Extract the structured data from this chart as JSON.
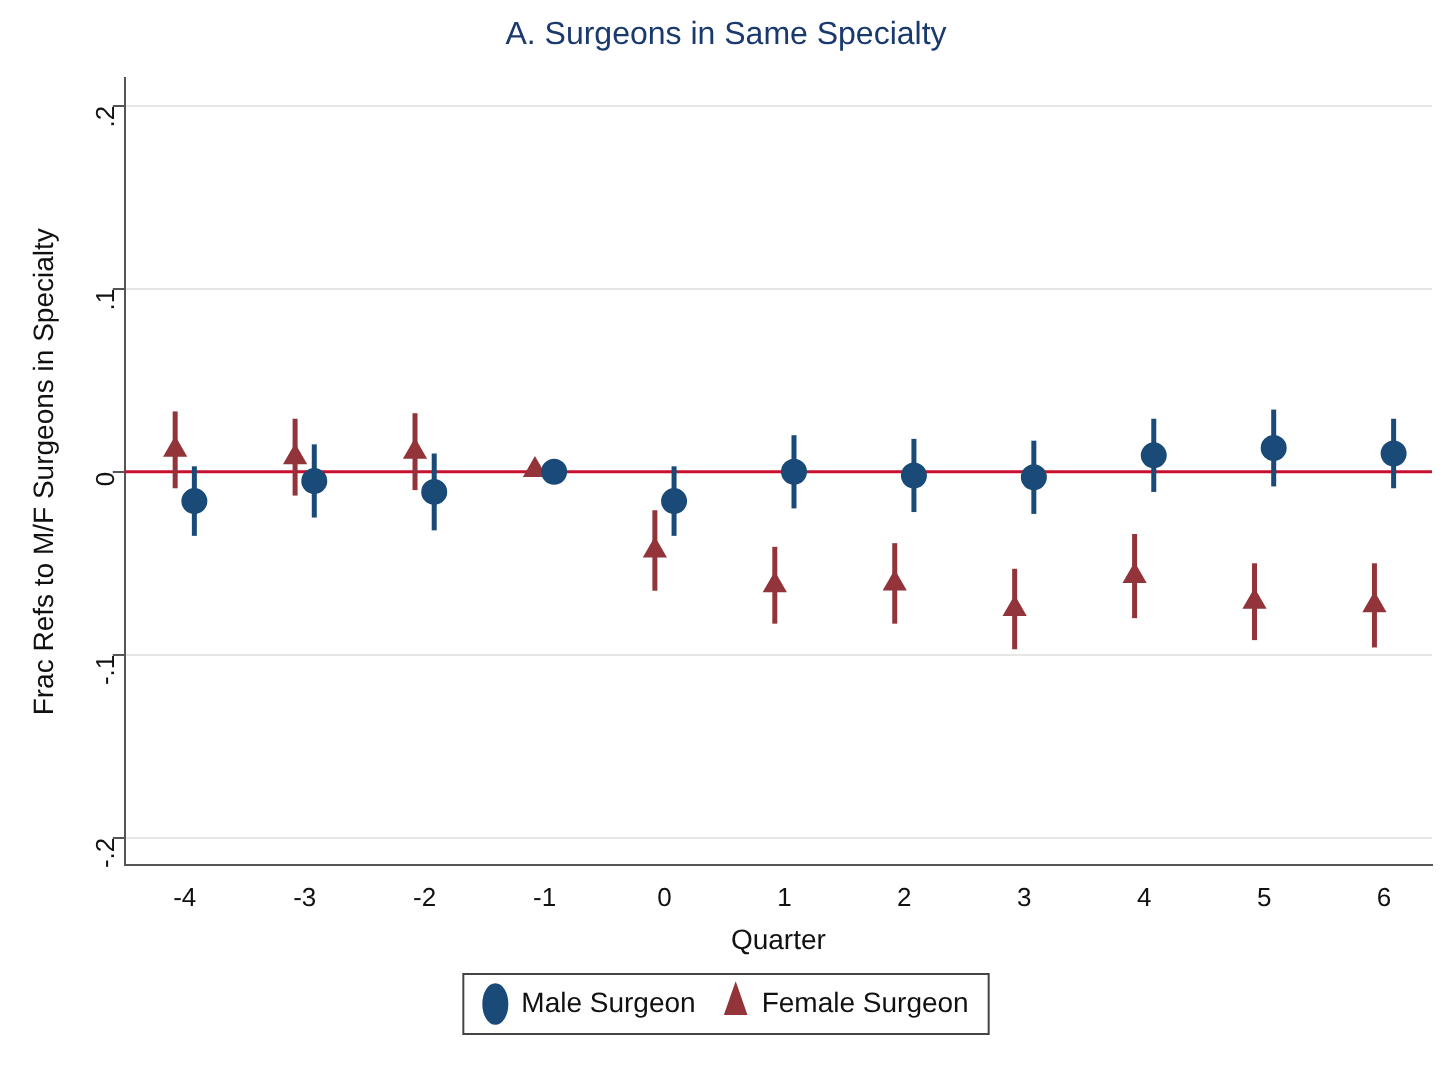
{
  "chart_data": {
    "type": "scatter",
    "title": "A. Surgeons in Same Specialty",
    "xlabel": "Quarter",
    "ylabel": "Frac Refs to M/F Surgeons in Specialty",
    "xlim": [
      -4.5,
      6.4
    ],
    "xticks": [
      -4,
      -3,
      -2,
      -1,
      0,
      1,
      2,
      3,
      4,
      5,
      6
    ],
    "ylim": [
      -0.215,
      0.215
    ],
    "yticks": [
      {
        "value": -0.2,
        "label": "-.2"
      },
      {
        "value": -0.1,
        "label": "-.1"
      },
      0,
      {
        "value": 0.1,
        "label": ".1"
      },
      {
        "value": 0.2,
        "label": ".2"
      }
    ],
    "grid": "y",
    "legend": "bottom",
    "ref_lines": [
      {
        "axis": "y",
        "value": 0,
        "color": "#c8102e"
      }
    ],
    "series": [
      {
        "name": "Male Surgeon",
        "color": "#1a4a78",
        "marker": "circle",
        "x": [
          -3.92,
          -2.92,
          -1.92,
          -0.92,
          0.08,
          1.08,
          2.08,
          3.08,
          4.08,
          5.08,
          6.08
        ],
        "values": [
          -0.016,
          -0.005,
          -0.011,
          0,
          -0.016,
          0,
          -0.002,
          -0.003,
          0.009,
          0.013,
          0.01
        ],
        "errors": [
          0.019,
          0.02,
          0.021,
          0.002,
          0.019,
          0.02,
          0.02,
          0.02,
          0.02,
          0.021,
          0.019
        ]
      },
      {
        "name": "Female Surgeon",
        "color": "#92343a",
        "marker": "triangle",
        "x": [
          -4.08,
          -3.08,
          -2.08,
          -1.08,
          -0.08,
          0.92,
          1.92,
          2.92,
          3.92,
          4.92,
          5.92
        ],
        "values": [
          0.012,
          0.008,
          0.011,
          0.001,
          -0.043,
          -0.062,
          -0.061,
          -0.075,
          -0.057,
          -0.071,
          -0.073
        ],
        "errors": [
          0.021,
          0.021,
          0.021,
          0.002,
          0.022,
          0.021,
          0.022,
          0.022,
          0.023,
          0.021,
          0.023
        ]
      }
    ]
  }
}
